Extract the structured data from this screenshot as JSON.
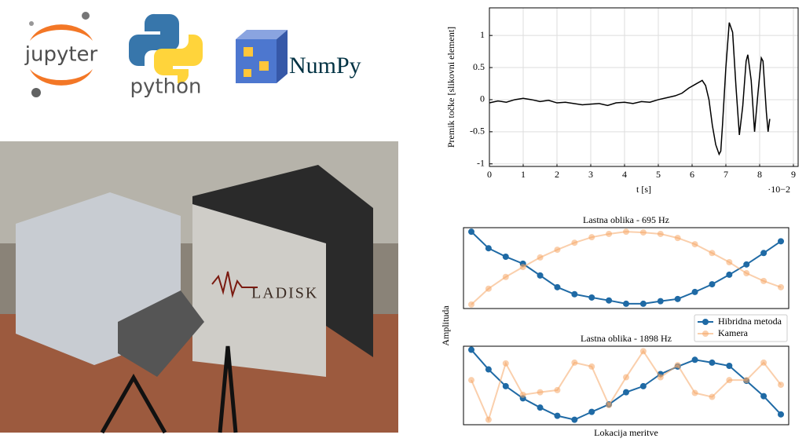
{
  "logos": {
    "jupyter": "jupyter",
    "python": "python",
    "numpy": "NumPy"
  },
  "photo": {
    "label": "LADISK"
  },
  "figure": {
    "y_label": "Amplituda",
    "x_label": "Lokacija meritve"
  },
  "chart_data": [
    {
      "type": "line",
      "color": "#000000",
      "grid": true,
      "x_label": "t [s]",
      "x_offset_label": "·10−2",
      "y_label": "Premik točke [slikovni element]",
      "xlim": [
        0,
        9.14
      ],
      "ylim": [
        -1.04,
        1.43
      ],
      "xticks": [
        0,
        1,
        2,
        3,
        4,
        5,
        6,
        7,
        8,
        9
      ],
      "yticks": [
        -1,
        -0.5,
        0,
        0.5,
        1
      ],
      "x": [
        0,
        0.25,
        0.5,
        0.75,
        1,
        1.25,
        1.5,
        1.75,
        2,
        2.25,
        2.5,
        2.75,
        3,
        3.25,
        3.5,
        3.75,
        4,
        4.25,
        4.5,
        4.75,
        5,
        5.25,
        5.5,
        5.7,
        5.9,
        6.1,
        6.3,
        6.4,
        6.5,
        6.6,
        6.7,
        6.8,
        6.85,
        6.9,
        7.0,
        7.1,
        7.2,
        7.3,
        7.4,
        7.5,
        7.6,
        7.65,
        7.75,
        7.85,
        7.95,
        8.05,
        8.1,
        8.2,
        8.25,
        8.3
      ],
      "values": [
        -0.05,
        -0.02,
        -0.04,
        0.0,
        0.02,
        0.0,
        -0.03,
        -0.01,
        -0.05,
        -0.04,
        -0.06,
        -0.08,
        -0.07,
        -0.06,
        -0.09,
        -0.05,
        -0.04,
        -0.06,
        -0.03,
        -0.04,
        0.0,
        0.03,
        0.06,
        0.1,
        0.18,
        0.24,
        0.3,
        0.22,
        0.0,
        -0.4,
        -0.7,
        -0.85,
        -0.8,
        -0.4,
        0.5,
        1.2,
        1.05,
        0.2,
        -0.55,
        -0.1,
        0.6,
        0.7,
        0.3,
        -0.5,
        0.1,
        0.65,
        0.6,
        -0.2,
        -0.5,
        -0.3
      ]
    },
    {
      "type": "line",
      "title": "Lastna oblika - 695 Hz",
      "ylim": [
        -1.1,
        1.1
      ],
      "legend": "lower right",
      "series": [
        {
          "name": "Hibridna metoda",
          "color": "#1f6aa5",
          "values": [
            0.99,
            0.54,
            0.31,
            0.12,
            -0.2,
            -0.52,
            -0.71,
            -0.8,
            -0.88,
            -0.97,
            -0.97,
            -0.9,
            -0.84,
            -0.65,
            -0.44,
            -0.18,
            0.1,
            0.41,
            0.73
          ]
        },
        {
          "name": "Kamera",
          "color": "#f5a868",
          "values": [
            -0.99,
            -0.56,
            -0.24,
            0.03,
            0.29,
            0.5,
            0.69,
            0.84,
            0.93,
            0.99,
            0.97,
            0.93,
            0.82,
            0.65,
            0.41,
            0.16,
            -0.14,
            -0.35,
            -0.52
          ]
        }
      ]
    },
    {
      "type": "line",
      "title": "Lastna oblika - 1898 Hz",
      "ylim": [
        -1.1,
        1.1
      ],
      "series": [
        {
          "color": "#1f6aa5",
          "values": [
            1.0,
            0.45,
            -0.02,
            -0.36,
            -0.62,
            -0.85,
            -0.96,
            -0.74,
            -0.53,
            -0.19,
            -0.02,
            0.32,
            0.53,
            0.72,
            0.64,
            0.55,
            0.13,
            -0.3,
            -0.81
          ]
        },
        {
          "color": "#f5a868",
          "values": [
            0.15,
            -0.96,
            0.62,
            -0.26,
            -0.19,
            -0.13,
            0.64,
            0.53,
            -0.55,
            0.23,
            0.96,
            0.23,
            0.57,
            -0.21,
            -0.32,
            0.15,
            0.15,
            0.64,
            0.02
          ]
        }
      ]
    }
  ]
}
